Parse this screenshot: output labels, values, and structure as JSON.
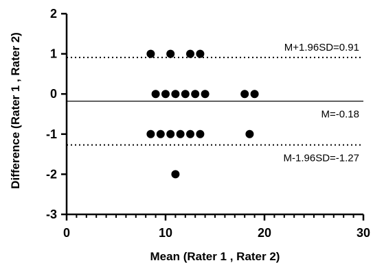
{
  "chart_data": {
    "type": "scatter",
    "xlabel": "Mean (Rater 1 , Rater 2)",
    "ylabel": "Difference (Rater 1 , Rater 2)",
    "xlim": [
      0,
      30
    ],
    "ylim": [
      -3,
      2
    ],
    "x_major_ticks": [
      0,
      10,
      20,
      30
    ],
    "x_minor_step": 1,
    "y_ticks": [
      -3,
      -2,
      -1,
      0,
      1,
      2
    ],
    "grid": false,
    "points": [
      {
        "x": 8.5,
        "y": 1
      },
      {
        "x": 10.5,
        "y": 1
      },
      {
        "x": 12.5,
        "y": 1
      },
      {
        "x": 13.5,
        "y": 1
      },
      {
        "x": 9,
        "y": 0
      },
      {
        "x": 10,
        "y": 0
      },
      {
        "x": 11,
        "y": 0
      },
      {
        "x": 12,
        "y": 0
      },
      {
        "x": 13,
        "y": 0
      },
      {
        "x": 14,
        "y": 0
      },
      {
        "x": 18,
        "y": 0
      },
      {
        "x": 19,
        "y": 0
      },
      {
        "x": 8.5,
        "y": -1
      },
      {
        "x": 9.5,
        "y": -1
      },
      {
        "x": 10.5,
        "y": -1
      },
      {
        "x": 11.5,
        "y": -1
      },
      {
        "x": 12.5,
        "y": -1
      },
      {
        "x": 13.5,
        "y": -1
      },
      {
        "x": 18.5,
        "y": -1
      },
      {
        "x": 11,
        "y": -2
      }
    ],
    "reference_lines": [
      {
        "y": 0.91,
        "style": "dotted",
        "label": "M+1.96SD=0.91",
        "label_pos": "above"
      },
      {
        "y": -0.18,
        "style": "solid",
        "label": "M=-0.18",
        "label_pos": "below"
      },
      {
        "y": -1.27,
        "style": "dotted",
        "label": "M-1.96SD=-1.27",
        "label_pos": "below"
      }
    ]
  }
}
